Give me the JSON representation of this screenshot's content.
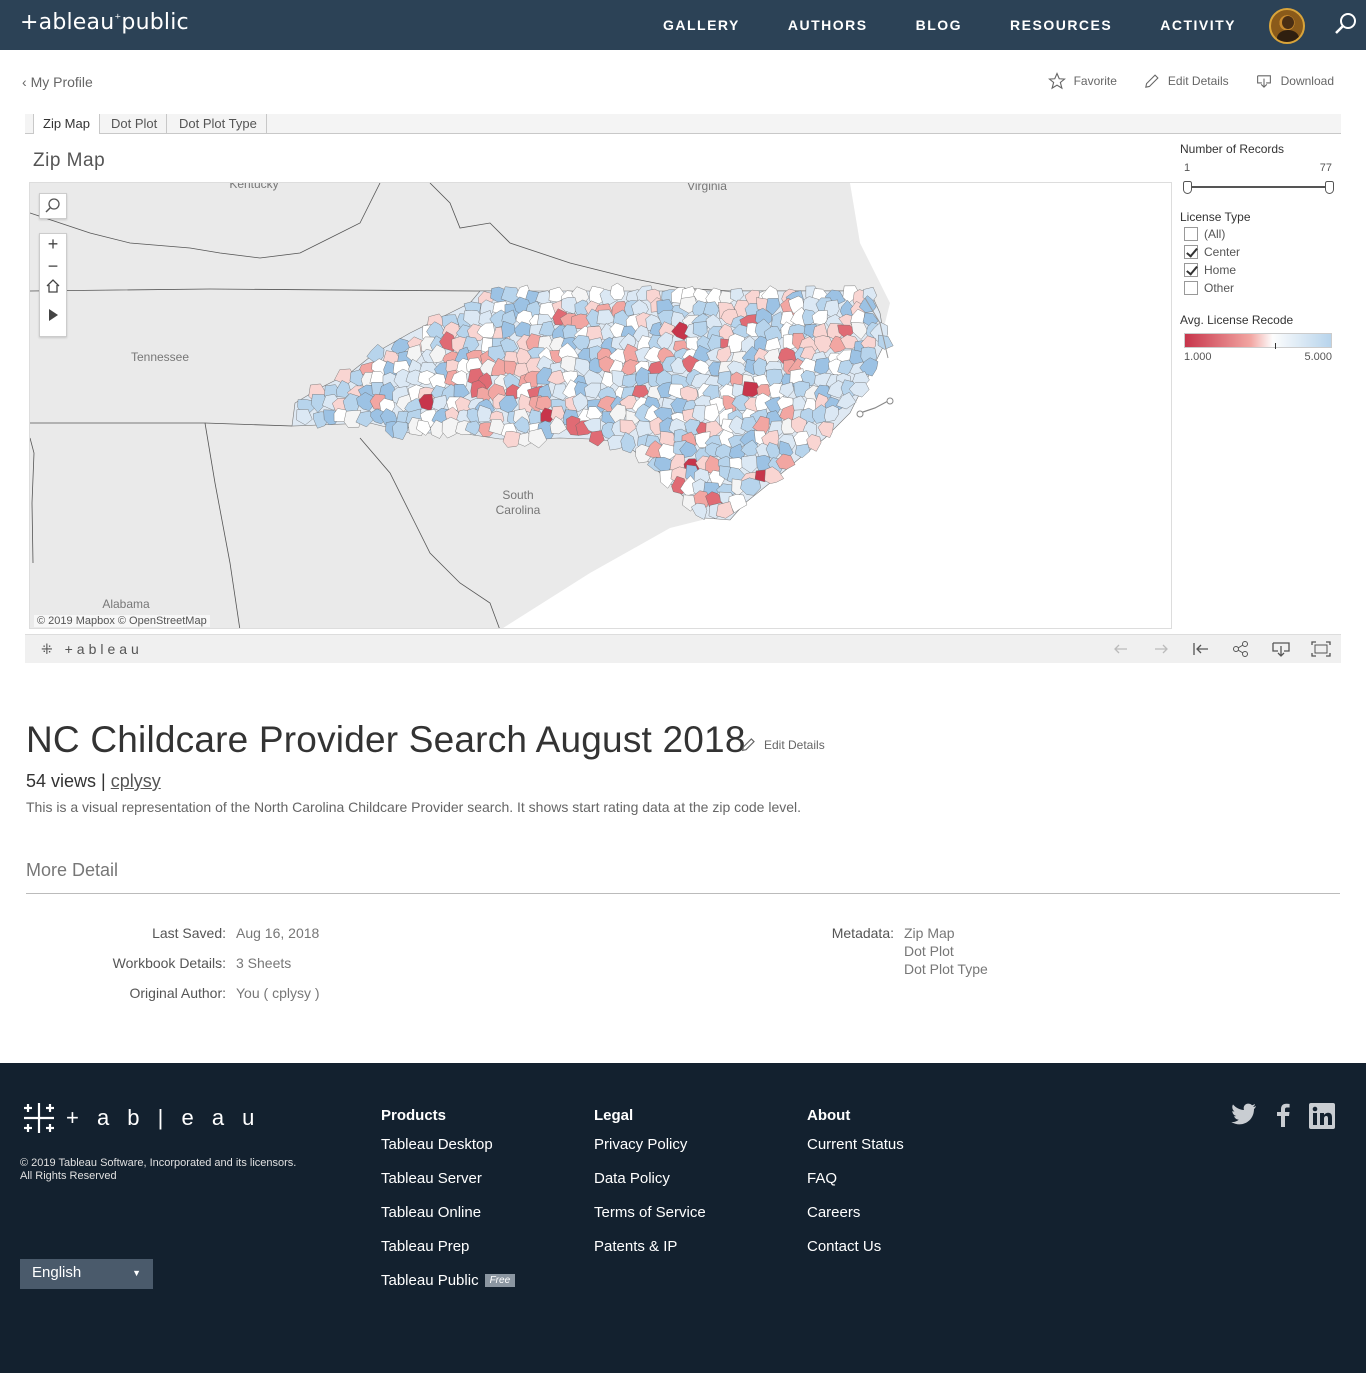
{
  "nav": {
    "logo_text": "+ableau⁺public",
    "links": [
      "GALLERY",
      "AUTHORS",
      "BLOG",
      "RESOURCES",
      "ACTIVITY"
    ]
  },
  "subbar": {
    "back_label": "My Profile",
    "favorite_label": "Favorite",
    "edit_details_label": "Edit Details",
    "download_label": "Download"
  },
  "tabs": [
    "Zip Map",
    "Dot Plot",
    "Dot Plot Type"
  ],
  "viz": {
    "title": "Zip Map",
    "map_labels": {
      "kentucky": "Kentucky",
      "virginia": "Virginia",
      "tennessee": "Tennessee",
      "south_carolina_1": "South",
      "south_carolina_2": "Carolina",
      "alabama": "Alabama"
    },
    "attribution": "© 2019 Mapbox  © OpenStreetMap",
    "filters": {
      "records_title": "Number of Records",
      "records_min": "1",
      "records_max": "77",
      "records_range": [
        1,
        77
      ],
      "license_title": "License Type",
      "license_options": [
        {
          "label": "(All)",
          "checked": false
        },
        {
          "label": "Center",
          "checked": true
        },
        {
          "label": "Home",
          "checked": true
        },
        {
          "label": "Other",
          "checked": false
        }
      ],
      "recode_title": "Avg. License Recode",
      "recode_min": "1.000",
      "recode_max": "5.000",
      "color_low": "#c7354b",
      "color_high": "#b7d4ec"
    },
    "toolbar_logo": "+ableau"
  },
  "workbook": {
    "title": "NC Childcare Provider Search August 2018",
    "edit_label": "Edit Details",
    "views_text": "54 views |",
    "author": "cplysy",
    "description": "This is a visual representation of the North Carolina Childcare Provider search. It shows start rating data at the zip code level.",
    "more_detail": "More Detail",
    "details": [
      {
        "key": "Last Saved:",
        "value": "Aug 16, 2018"
      },
      {
        "key": "Workbook Details:",
        "value": "3 Sheets"
      },
      {
        "key": "Original Author:",
        "value": "You ( cplysy )"
      }
    ],
    "metadata_key": "Metadata:",
    "metadata_values": [
      "Zip Map",
      "Dot Plot",
      "Dot Plot Type"
    ]
  },
  "footer": {
    "logo_text": "+ a b | e a u",
    "copyright_1": "© 2019 Tableau Software, Incorporated and its licensors.",
    "copyright_2": "All Rights Reserved",
    "language": "English",
    "products_title": "Products",
    "products": [
      "Tableau Desktop",
      "Tableau Server",
      "Tableau Online",
      "Tableau Prep",
      "Tableau Public"
    ],
    "free_badge": "Free",
    "legal_title": "Legal",
    "legal": [
      "Privacy Policy",
      "Data Policy",
      "Terms of Service",
      "Patents & IP"
    ],
    "about_title": "About",
    "about": [
      "Current Status",
      "FAQ",
      "Careers",
      "Contact Us"
    ]
  }
}
